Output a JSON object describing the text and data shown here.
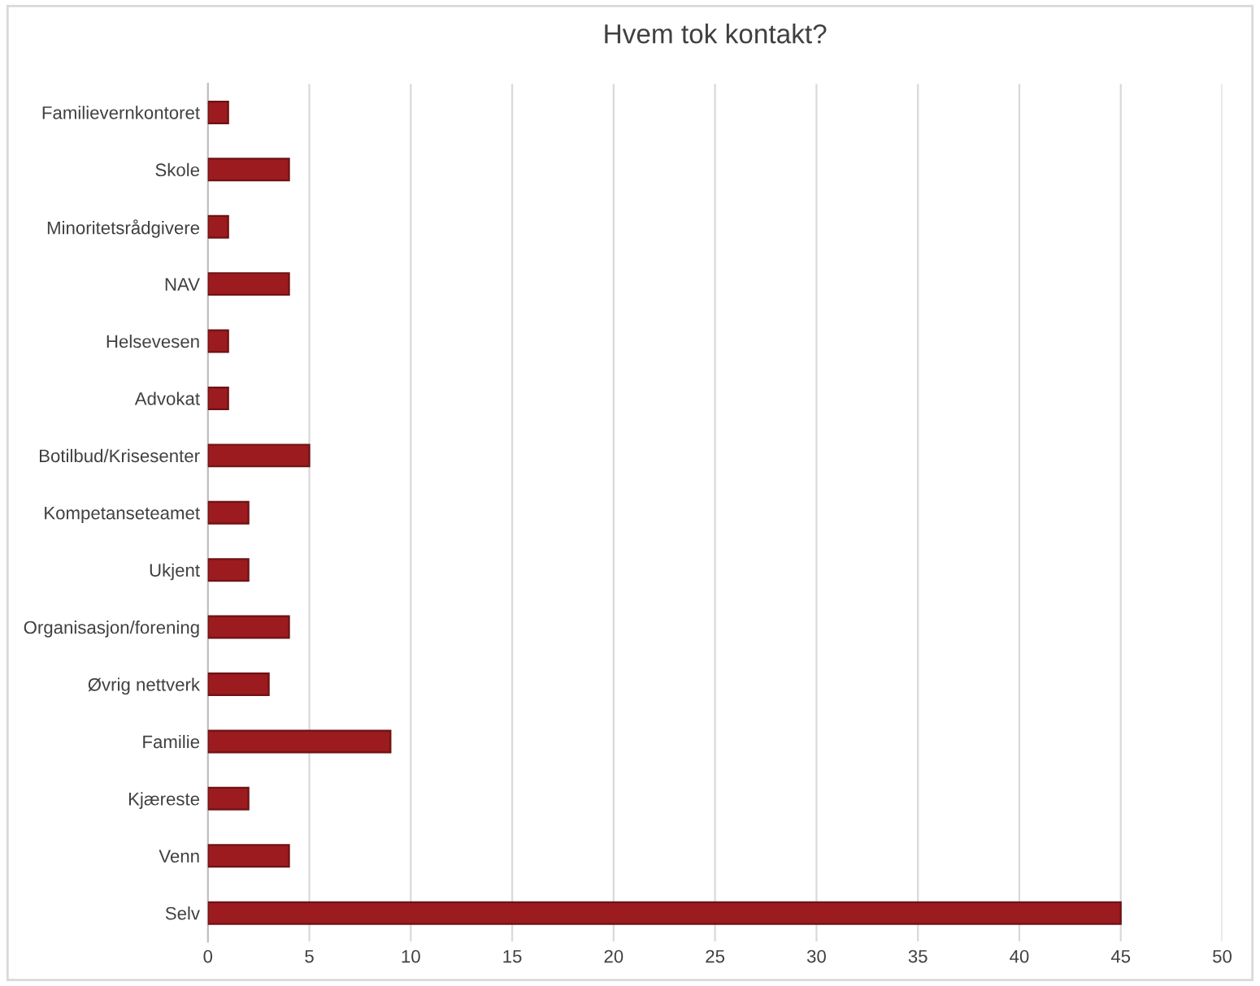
{
  "chart_data": {
    "type": "bar",
    "orientation": "horizontal",
    "title": "Hvem tok kontakt?",
    "categories": [
      "Familievernkontoret",
      "Skole",
      "Minoritetsrådgivere",
      "NAV",
      "Helsevesen",
      "Advokat",
      "Botilbud/Krisesenter",
      "Kompetanseteamet",
      "Ukjent",
      "Organisasjon/forening",
      "Øvrig nettverk",
      "Familie",
      "Kjæreste",
      "Venn",
      "Selv"
    ],
    "values": [
      1,
      4,
      1,
      4,
      1,
      1,
      5,
      2,
      2,
      4,
      3,
      9,
      2,
      4,
      45
    ],
    "color": "#9b1b1f",
    "xlim": [
      0,
      50
    ],
    "xticks": [
      0,
      5,
      10,
      15,
      20,
      25,
      30,
      35,
      40,
      45,
      50
    ],
    "grid": "x",
    "legend": false
  }
}
